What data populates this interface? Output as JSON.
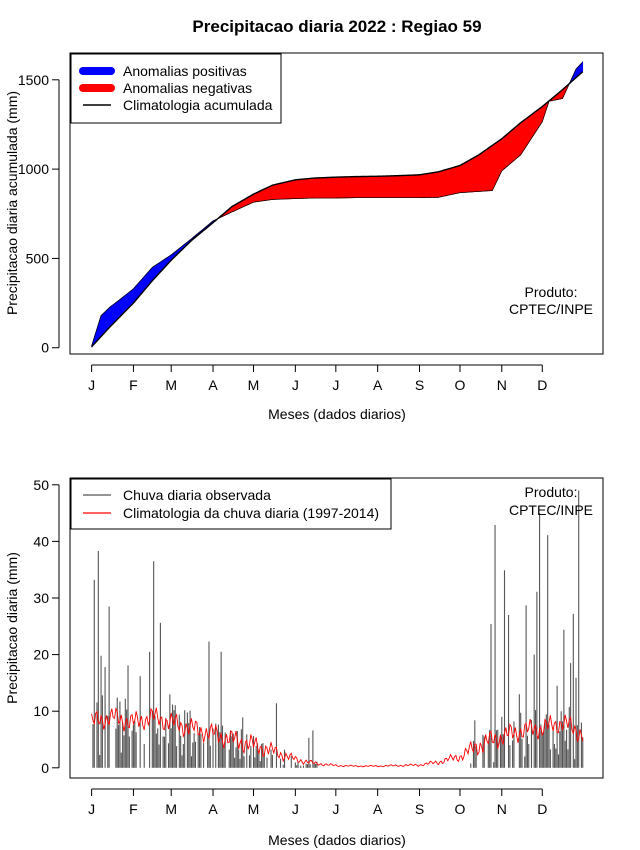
{
  "figure": {
    "title": "Precipitacao diaria 2022 : Regiao 59",
    "product_note_line1": "Produto:",
    "product_note_line2": "CPTEC/INPE"
  },
  "chart_data": [
    {
      "type": "area",
      "ylabel": "Precipitacao diaria acumulada (mm)",
      "xlabel": "Meses (dados diarios)",
      "categories": [
        "J",
        "F",
        "M",
        "A",
        "M",
        "J",
        "J",
        "A",
        "S",
        "O",
        "N",
        "D"
      ],
      "ylim": [
        -35,
        1650
      ],
      "yticks": [
        0,
        500,
        1000,
        1500
      ],
      "xlim": [
        -15,
        380
      ],
      "month_day_positions": [
        1,
        32,
        60,
        91,
        121,
        152,
        182,
        213,
        244,
        274,
        305,
        335
      ],
      "grid": false,
      "legend_placement": "top-left",
      "legend": [
        {
          "label": "Anomalias positivas",
          "color": "#0000ff",
          "style": "thick"
        },
        {
          "label": "Anomalias negativas",
          "color": "#ff0000",
          "style": "thick"
        },
        {
          "label": "Climatologia acumulada",
          "color": "#000000",
          "style": "line"
        }
      ],
      "climatology_day": [
        1,
        15,
        32,
        46,
        60,
        75,
        91,
        105,
        121,
        135,
        152,
        166,
        182,
        196,
        213,
        227,
        244,
        258,
        274,
        288,
        305,
        319,
        335,
        350,
        365
      ],
      "climatology_cum": [
        5,
        120,
        250,
        375,
        490,
        600,
        700,
        790,
        860,
        910,
        940,
        950,
        955,
        958,
        960,
        963,
        968,
        985,
        1020,
        1080,
        1170,
        1260,
        1350,
        1445,
        1545
      ],
      "observed_day": [
        1,
        8,
        15,
        22,
        32,
        46,
        60,
        75,
        91,
        105,
        121,
        135,
        152,
        166,
        182,
        196,
        213,
        227,
        244,
        258,
        274,
        288,
        298,
        305,
        319,
        335,
        340,
        350,
        360,
        365
      ],
      "observed_cum": [
        10,
        180,
        230,
        270,
        330,
        450,
        520,
        610,
        710,
        760,
        815,
        830,
        835,
        838,
        838,
        840,
        840,
        840,
        840,
        842,
        868,
        875,
        880,
        990,
        1080,
        1265,
        1380,
        1395,
        1560,
        1600
      ],
      "colors": {
        "positive": "#0000ff",
        "negative": "#ff0000",
        "line": "#000000"
      }
    },
    {
      "type": "bar",
      "ylabel": "Precipitacao diaria (mm)",
      "xlabel": "Meses (dados diarios)",
      "categories": [
        "J",
        "F",
        "M",
        "A",
        "M",
        "J",
        "J",
        "A",
        "S",
        "O",
        "N",
        "D"
      ],
      "ylim": [
        -1.8,
        51.2
      ],
      "yticks": [
        0,
        10,
        20,
        30,
        40,
        50
      ],
      "xlim": [
        -15,
        380
      ],
      "month_day_positions": [
        1,
        32,
        60,
        91,
        121,
        152,
        182,
        213,
        244,
        274,
        305,
        335
      ],
      "grid": false,
      "legend_placement": "top-left",
      "legend": [
        {
          "label": "Chuva diaria observada",
          "color": "#555555"
        },
        {
          "label": "Climatologia da chuva diaria (1997-2014)",
          "color": "#ff0000"
        }
      ],
      "observed_peaks": [
        {
          "day": 3,
          "value": 33.2
        },
        {
          "day": 6,
          "value": 38.3
        },
        {
          "day": 8,
          "value": 19.8
        },
        {
          "day": 9,
          "value": 12.8
        },
        {
          "day": 11,
          "value": 17.8
        },
        {
          "day": 14,
          "value": 28.5
        },
        {
          "day": 28,
          "value": 18.1
        },
        {
          "day": 37,
          "value": 16.2
        },
        {
          "day": 44,
          "value": 20.5
        },
        {
          "day": 47,
          "value": 36.5
        },
        {
          "day": 52,
          "value": 25.6
        },
        {
          "day": 59,
          "value": 13.0
        },
        {
          "day": 88,
          "value": 22.3
        },
        {
          "day": 97,
          "value": 20.5
        },
        {
          "day": 109,
          "value": 6.5
        },
        {
          "day": 113,
          "value": 8.9
        },
        {
          "day": 138,
          "value": 11.4
        },
        {
          "day": 162,
          "value": 5.3
        },
        {
          "day": 165,
          "value": 6.6
        },
        {
          "day": 285,
          "value": 8.4
        },
        {
          "day": 297,
          "value": 25.4
        },
        {
          "day": 300,
          "value": 42.9
        },
        {
          "day": 305,
          "value": 9.0
        },
        {
          "day": 307,
          "value": 34.9
        },
        {
          "day": 310,
          "value": 27.0
        },
        {
          "day": 318,
          "value": 13.0
        },
        {
          "day": 323,
          "value": 28.7
        },
        {
          "day": 329,
          "value": 20.0
        },
        {
          "day": 331,
          "value": 31.1
        },
        {
          "day": 333,
          "value": 45.0
        },
        {
          "day": 339,
          "value": 41.1
        },
        {
          "day": 346,
          "value": 14.5
        },
        {
          "day": 351,
          "value": 24.4
        },
        {
          "day": 356,
          "value": 18.5
        },
        {
          "day": 358,
          "value": 27.2
        },
        {
          "day": 360,
          "value": 15.9
        },
        {
          "day": 362,
          "value": 49.0
        },
        {
          "day": 364,
          "value": 8.0
        }
      ],
      "climatology_day": [
        1,
        15,
        32,
        46,
        60,
        75,
        91,
        105,
        121,
        135,
        152,
        166,
        182,
        196,
        213,
        227,
        244,
        258,
        274,
        288,
        305,
        319,
        335,
        350,
        365
      ],
      "climatology_value": [
        8,
        9,
        8,
        9,
        8,
        7,
        6,
        5,
        4,
        3,
        1.5,
        0.8,
        0.4,
        0.3,
        0.3,
        0.4,
        0.5,
        1,
        2,
        4,
        5.5,
        6.5,
        7,
        8,
        6
      ],
      "colors": {
        "observed": "#555555",
        "climatology": "#ff0000"
      }
    }
  ]
}
